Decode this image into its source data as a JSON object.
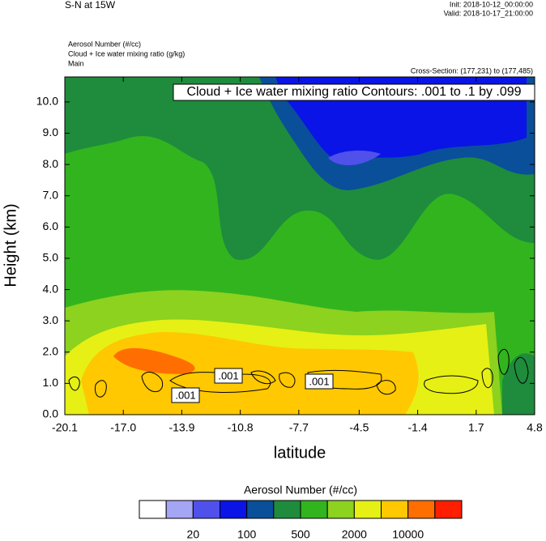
{
  "chart_data": {
    "type": "contour",
    "title": "S-N at 15W",
    "init": "Init: 2018-10-12_00:00:00",
    "valid": "Valid: 2018-10-17_21:00:00",
    "fields": [
      "Aerosol Number   (#/cc)",
      "Cloud + Ice water mixing ratio   (g/kg)",
      "Main"
    ],
    "cross_section": "Cross-Section: (177,231) to (177,485)",
    "contour_info": "Cloud + Ice water mixing ratio Contours: .001 to .1 by .099",
    "contour_labels": [
      ".001",
      ".001",
      ".001"
    ],
    "xlabel": "latitude",
    "ylabel": "Height (km)",
    "xlim": [
      -20.1,
      4.8
    ],
    "xticks": [
      -20.1,
      {
        "value": -17.0,
        "label": "-17.0"
      },
      -13.9,
      -10.8,
      -7.7,
      -4.5,
      -1.4,
      1.7,
      4.8
    ],
    "ylim": [
      0,
      10.8
    ],
    "yticks": [
      {
        "value": 0,
        "label": "0.0"
      },
      {
        "value": 1,
        "label": "1.0"
      },
      {
        "value": 2,
        "label": "2.0"
      },
      {
        "value": 3,
        "label": "3.0"
      },
      {
        "value": 4,
        "label": "4.0"
      },
      {
        "value": 5,
        "label": "5.0"
      },
      {
        "value": 6,
        "label": "6.0"
      },
      {
        "value": 7,
        "label": "7.0"
      },
      {
        "value": 8,
        "label": "8.0"
      },
      {
        "value": 9,
        "label": "9.0"
      },
      {
        "value": 10,
        "label": "10.0"
      }
    ],
    "colorbar": {
      "title": "Aerosol Number  (#/cc)",
      "colors": [
        "#ffffff",
        "#a5a5f5",
        "#5050eb",
        "#0a14e6",
        "#0a4f9a",
        "#1e8c3c",
        "#32b41e",
        "#8cd21e",
        "#e6f014",
        "#ffc800",
        "#ff6e00",
        "#ff1e00"
      ],
      "levels": [
        null,
        20,
        null,
        100,
        null,
        500,
        null,
        2000,
        null,
        10000,
        null
      ]
    }
  }
}
